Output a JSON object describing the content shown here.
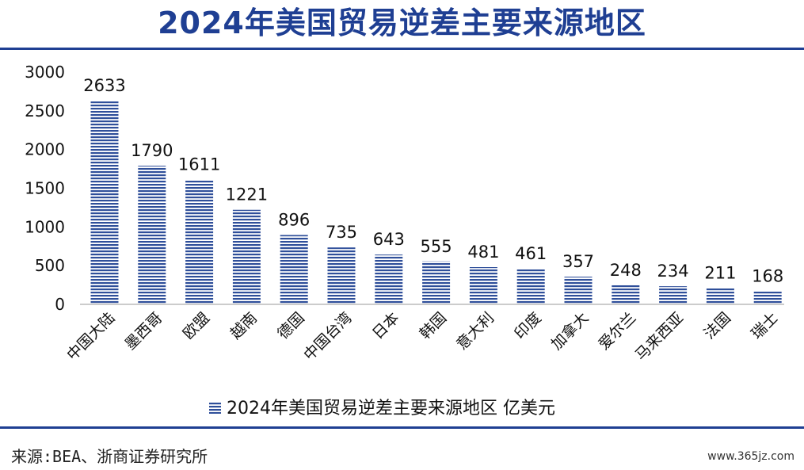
{
  "title": "2024年美国贸易逆差主要来源地区",
  "source": "来源:BEA、浙商证券研究所",
  "watermark": "www.365jz.com",
  "colors": {
    "title": "#1f3f93",
    "bar": "#2f4f9a",
    "rule": "#1f3f93"
  },
  "chart_data": {
    "type": "bar",
    "categories": [
      "中国大陆",
      "墨西哥",
      "欧盟",
      "越南",
      "德国",
      "中国台湾",
      "日本",
      "韩国",
      "意大利",
      "印度",
      "加拿大",
      "爱尔兰",
      "马来西亚",
      "法国",
      "瑞士"
    ],
    "series": [
      {
        "name": "2024年美国贸易逆差主要来源地区 亿美元",
        "values": [
          2633,
          1790,
          1611,
          1221,
          896,
          735,
          643,
          555,
          481,
          461,
          357,
          248,
          234,
          211,
          168
        ]
      }
    ],
    "yticks": [
      "0",
      "500",
      "1000",
      "1500",
      "2000",
      "2500",
      "3000"
    ],
    "ylim": [
      0,
      3000
    ],
    "bar_pattern": "horizontal-stripes",
    "legend_position": "bottom",
    "grid": false
  }
}
